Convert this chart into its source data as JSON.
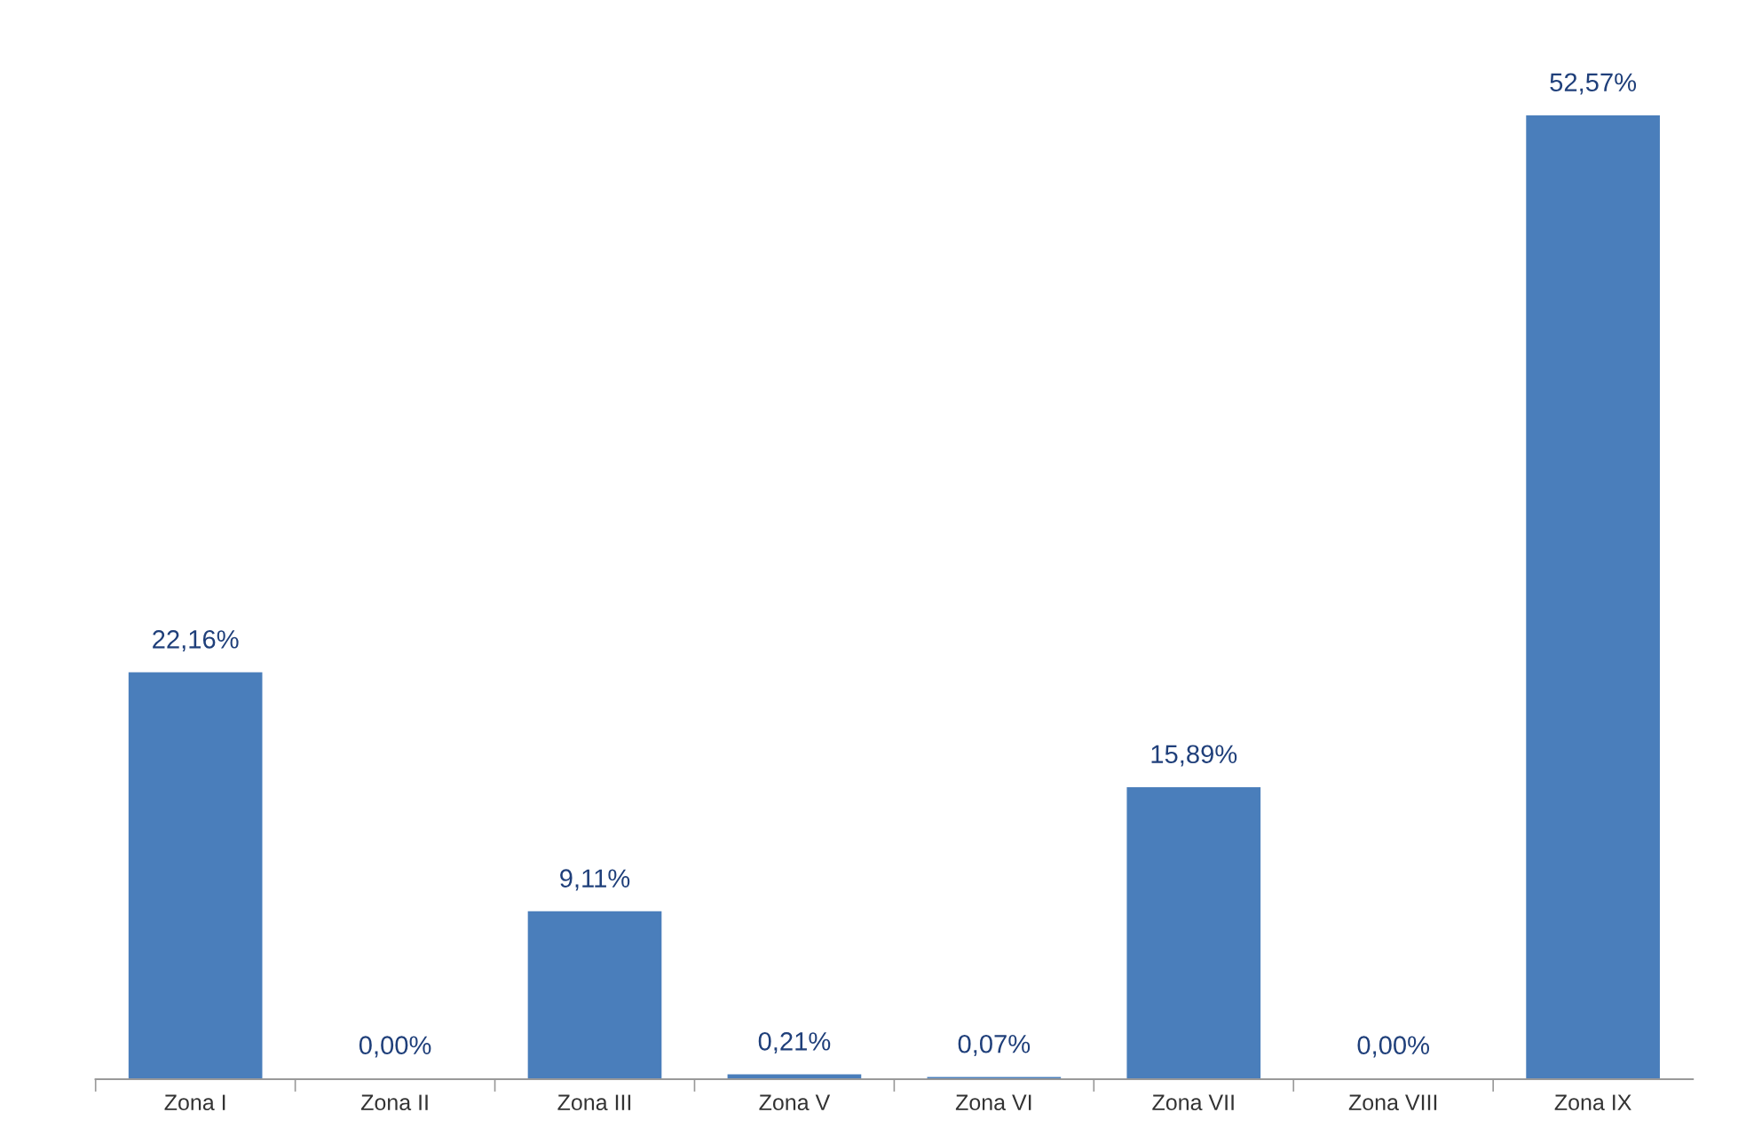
{
  "chart_data": {
    "type": "bar",
    "categories": [
      "Zona I",
      "Zona II",
      "Zona III",
      "Zona V",
      "Zona VI",
      "Zona VII",
      "Zona VIII",
      "Zona IX"
    ],
    "values": [
      22.16,
      0.0,
      9.11,
      0.21,
      0.07,
      15.89,
      0.0,
      52.57
    ],
    "value_labels": [
      "22,16%",
      "0,00%",
      "9,11%",
      "0,21%",
      "0,07%",
      "15,89%",
      "0,00%",
      "52,57%"
    ],
    "color": "#4a7ebb",
    "tick_labels": "x",
    "grid": false,
    "legend": false
  }
}
